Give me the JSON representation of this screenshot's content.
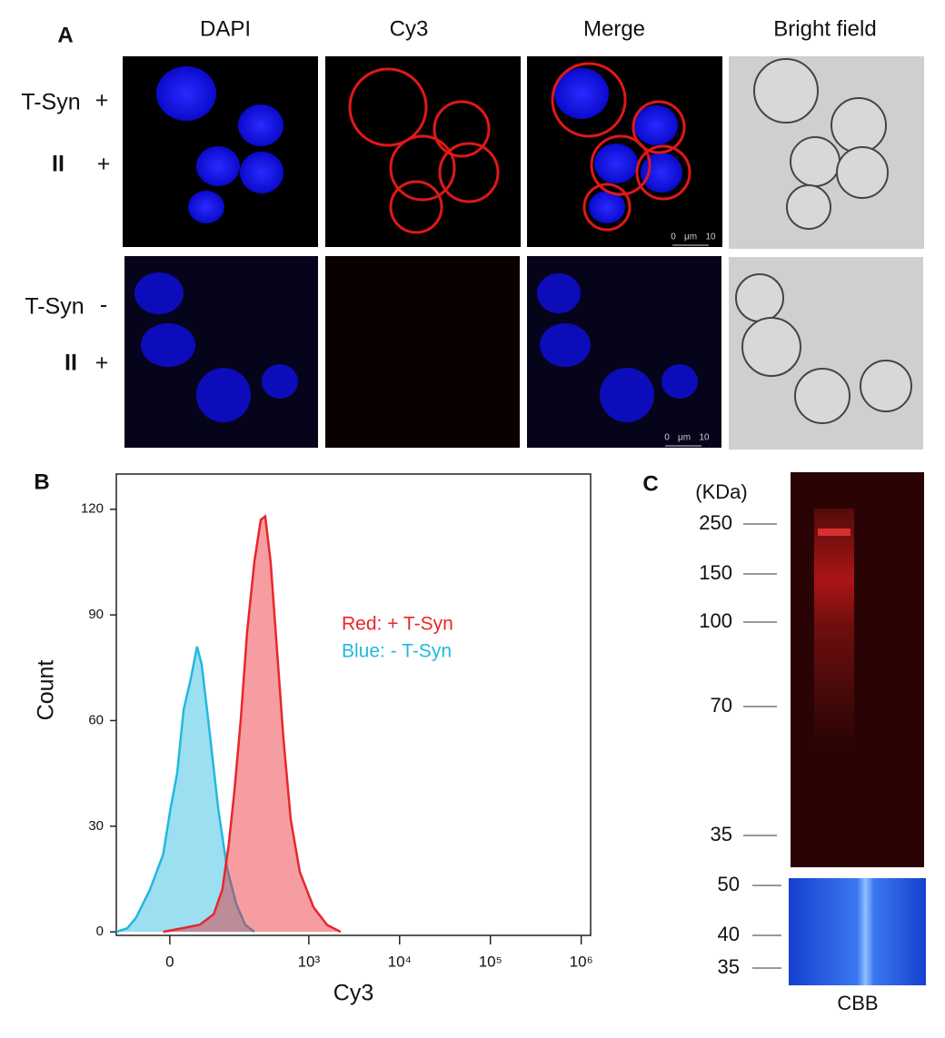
{
  "panel_labels": [
    "A",
    "B",
    "C"
  ],
  "panel_a": {
    "columns": [
      "DAPI",
      "Cy3",
      "Merge",
      "Bright field"
    ],
    "rows": [
      {
        "label": "T-Syn",
        "sign": "+",
        "label2": "II",
        "sign2": "+"
      },
      {
        "label": "T-Syn",
        "sign": "-",
        "label2": "II",
        "sign2": "+"
      }
    ],
    "scale_bar": {
      "start": "0",
      "unit": "μm",
      "end": "10"
    }
  },
  "chart_data": {
    "type": "area",
    "xlabel": "Cy3",
    "ylabel": "Count",
    "xscale": "biexponential",
    "xlim": [
      -107,
      1270000
    ],
    "xticks": [
      0,
      {
        "value": 1000,
        "label": "10³"
      },
      {
        "value": 10000,
        "label": "10⁴"
      },
      {
        "value": 100000,
        "label": "10⁵"
      },
      {
        "value": 1000000,
        "label": "10⁶"
      }
    ],
    "ylim": [
      -1,
      130
    ],
    "yticks": [
      0,
      30,
      60,
      90,
      120
    ],
    "annotations": [
      "Red: + T-Syn",
      "Blue: - T-Syn"
    ],
    "series": [
      {
        "name": "- T-Syn",
        "color": "#22b8e0",
        "x": [
          -107,
          -77,
          -57,
          -31,
          -10,
          1,
          11,
          21,
          33,
          44,
          53,
          69,
          92,
          119,
          153,
          195,
          248
        ],
        "values": [
          0,
          1,
          4,
          12,
          22,
          35,
          45,
          63,
          72,
          81,
          76,
          58,
          35,
          18,
          8,
          2,
          0
        ]
      },
      {
        "name": "+ T-Syn",
        "color": "#e8262c",
        "x": [
          -10,
          18,
          49,
          80,
          104,
          125,
          146,
          173,
          205,
          248,
          293,
          329,
          378,
          445,
          524,
          631,
          796,
          1127,
          1587,
          2242
        ],
        "values": [
          0,
          1,
          2,
          5,
          12,
          25,
          40,
          60,
          85,
          105,
          117,
          118,
          105,
          80,
          55,
          32,
          17,
          7,
          2,
          0
        ]
      }
    ]
  },
  "panel_c": {
    "unit": "(KDa)",
    "markers": [
      250,
      150,
      100,
      70,
      35
    ],
    "cbb_markers": [
      50,
      40,
      35
    ],
    "cbb_label": "CBB"
  }
}
